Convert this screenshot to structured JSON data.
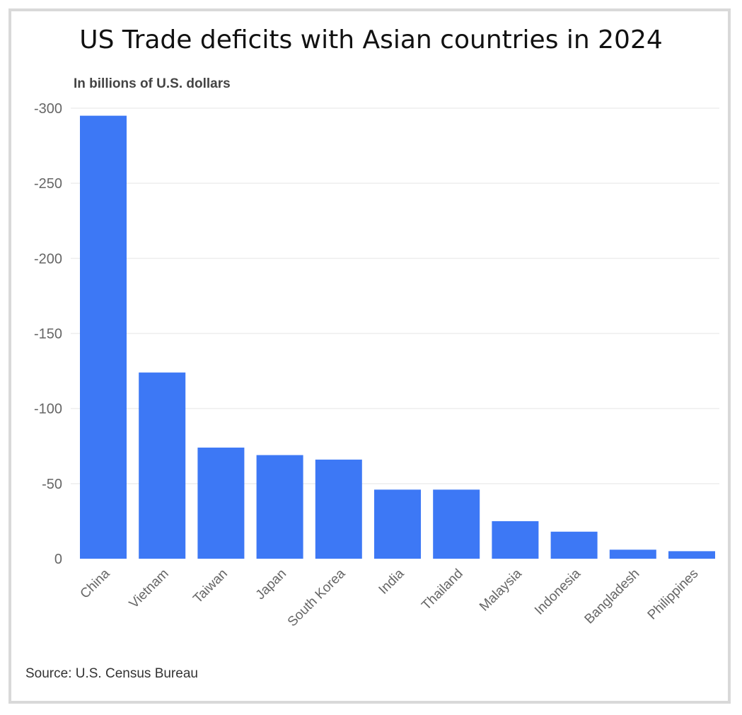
{
  "header": {
    "title": "US Trade deficits with Asian countries in 2024",
    "subtitle": "In billions of U.S. dollars"
  },
  "footer": {
    "source": "Source: U.S. Census Bureau"
  },
  "colors": {
    "bar": "#3d78f5",
    "frame": "#d9d9d9",
    "grid": "#eeeeee"
  },
  "chart_data": {
    "type": "bar",
    "title": "US Trade deficits with Asian countries in 2024",
    "subtitle": "In billions of U.S. dollars",
    "xlabel": "",
    "ylabel": "",
    "categories": [
      "China",
      "Vietnam",
      "Taiwan",
      "Japan",
      "South Korea",
      "India",
      "Thailand",
      "Malaysia",
      "Indonesia",
      "Bangladesh",
      "Philippines"
    ],
    "values": [
      -295,
      -124,
      -74,
      -69,
      -66,
      -46,
      -46,
      -25,
      -18,
      -6,
      -5
    ],
    "yticks": [
      0,
      -50,
      -100,
      -150,
      -200,
      -250,
      -300
    ],
    "ytick_labels": [
      "0",
      "-50",
      "-100",
      "-150",
      "-200",
      "-250",
      "-300"
    ],
    "ylim": [
      0,
      -300
    ],
    "y_axis_inverted": true,
    "grid": true,
    "legend": "none",
    "source": "Source: U.S. Census Bureau"
  }
}
